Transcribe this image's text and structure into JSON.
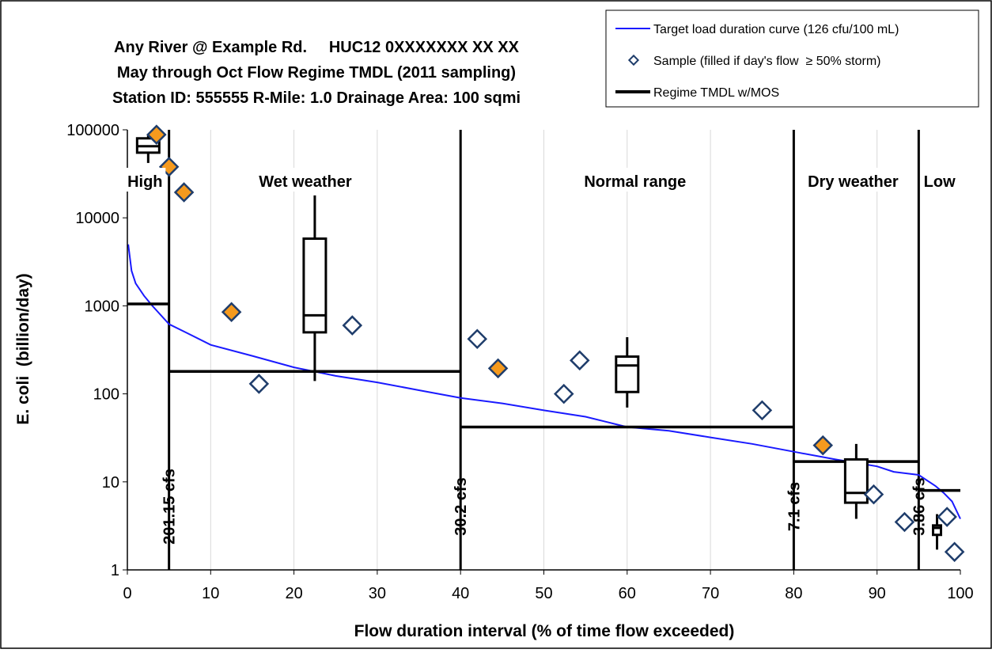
{
  "chart_data": {
    "type": "scatter",
    "title_lines": [
      "Any River @ Example Rd.     HUC12 0XXXXXXX XX XX",
      "May through Oct Flow Regime TMDL (2011 sampling)",
      "Station ID: 555555 R-Mile: 1.0 Drainage Area: 100 sqmi"
    ],
    "xlabel": "Flow duration interval (% of time flow exceeded)",
    "ylabel": "E. coli  (billion/day)",
    "xlim": [
      0,
      100
    ],
    "ylim": [
      1,
      100000
    ],
    "y_scale": "log",
    "x_ticks": [
      "0",
      "10",
      "20",
      "30",
      "40",
      "50",
      "60",
      "70",
      "80",
      "90",
      "100"
    ],
    "y_ticks": [
      "1",
      "10",
      "100",
      "1000",
      "10000",
      "100000"
    ],
    "grid": "vertical",
    "legend": {
      "placement": "top-right",
      "entries": [
        "Target load duration curve (126 cfu/100 mL)",
        "Sample (filled if day's flow  ≥ 50% storm)",
        "Regime TMDL w/MOS"
      ]
    },
    "colors": {
      "target_curve": "#1a1aff",
      "sample_edge": "#1f3d6b",
      "sample_fill_storm": "#f59a1e",
      "tmdl_line": "#000000",
      "grid": "#d9d9d9",
      "boundary": "#000000"
    },
    "regimes": [
      {
        "label": "High",
        "boundary_x": 5,
        "cfs_label": "201.15 cfs"
      },
      {
        "label": "Wet weather",
        "boundary_x": 40,
        "cfs_label": "30.2 cfs"
      },
      {
        "label": "Normal range",
        "boundary_x": 80,
        "cfs_label": "7.1 cfs"
      },
      {
        "label": "Dry weather",
        "boundary_x": 95,
        "cfs_label": "3.86 cfs"
      },
      {
        "label": "Low",
        "boundary_x": null,
        "cfs_label": null
      }
    ],
    "target_curve": {
      "x": [
        0.1,
        0.5,
        1,
        2,
        3,
        5,
        7,
        10,
        15,
        20,
        25,
        30,
        35,
        40,
        45,
        50,
        55,
        60,
        65,
        70,
        75,
        80,
        85,
        90,
        92,
        95,
        97,
        98,
        99,
        100
      ],
      "y": [
        5000,
        2500,
        1800,
        1300,
        1000,
        620,
        500,
        360,
        270,
        200,
        160,
        135,
        110,
        90,
        78,
        65,
        55,
        42,
        38,
        32,
        27,
        22,
        18,
        15,
        13,
        12,
        9,
        7.5,
        6,
        3.8
      ]
    },
    "tmdl_segments": [
      {
        "x0": 0,
        "x1": 5,
        "y": 1050
      },
      {
        "x0": 5,
        "x1": 40,
        "y": 180
      },
      {
        "x0": 40,
        "x1": 80,
        "y": 42
      },
      {
        "x0": 80,
        "x1": 95,
        "y": 17
      },
      {
        "x0": 95,
        "x1": 100,
        "y": 8
      }
    ],
    "samples": [
      {
        "x": 3.5,
        "y": 88000,
        "filled": true
      },
      {
        "x": 5.0,
        "y": 38000,
        "filled": true
      },
      {
        "x": 6.8,
        "y": 19500,
        "filled": true
      },
      {
        "x": 12.5,
        "y": 850,
        "filled": true
      },
      {
        "x": 15.8,
        "y": 130,
        "filled": false
      },
      {
        "x": 27.0,
        "y": 600,
        "filled": false
      },
      {
        "x": 42.0,
        "y": 420,
        "filled": false
      },
      {
        "x": 44.5,
        "y": 195,
        "filled": true
      },
      {
        "x": 52.4,
        "y": 100,
        "filled": false
      },
      {
        "x": 54.3,
        "y": 240,
        "filled": false
      },
      {
        "x": 76.2,
        "y": 65,
        "filled": false
      },
      {
        "x": 83.5,
        "y": 26,
        "filled": true
      },
      {
        "x": 89.6,
        "y": 7.2,
        "filled": false
      },
      {
        "x": 93.3,
        "y": 3.5,
        "filled": false
      },
      {
        "x": 98.4,
        "y": 4.0,
        "filled": false
      },
      {
        "x": 99.3,
        "y": 1.6,
        "filled": false
      }
    ],
    "boxplots": [
      {
        "x": 2.5,
        "min": 42000,
        "q1": 55000,
        "median": 65000,
        "q3": 80000,
        "max": 90000
      },
      {
        "x": 22.5,
        "min": 140,
        "q1": 500,
        "median": 780,
        "q3": 5800,
        "max": 18000
      },
      {
        "x": 60.0,
        "min": 70,
        "q1": 105,
        "median": 210,
        "q3": 265,
        "max": 440
      },
      {
        "x": 87.5,
        "min": 3.8,
        "q1": 5.8,
        "median": 7.5,
        "q3": 18,
        "max": 27
      },
      {
        "x": 97.2,
        "min": 1.7,
        "q1": 2.5,
        "median": 3.0,
        "q3": 3.2,
        "max": 4.3
      }
    ]
  }
}
